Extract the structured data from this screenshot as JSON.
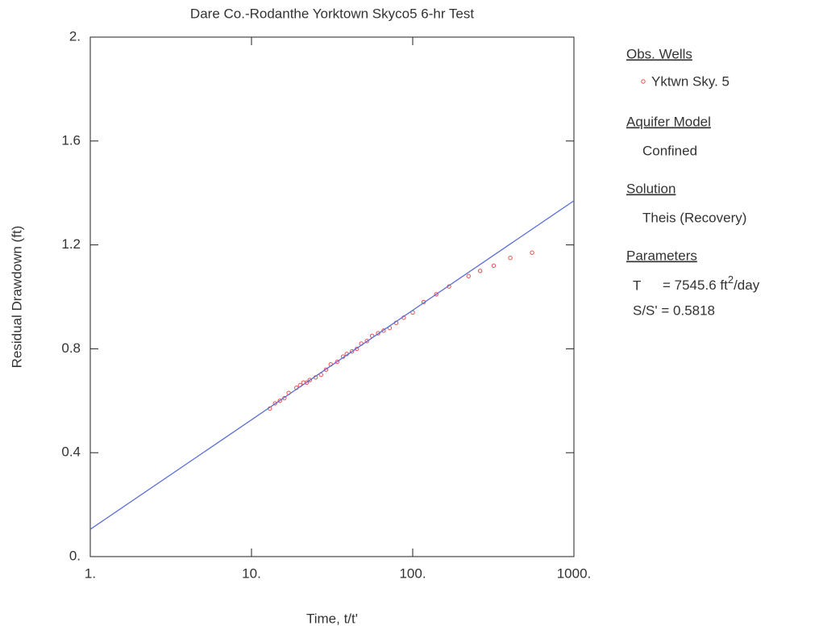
{
  "chart_data": {
    "type": "scatter",
    "title": "Dare Co.-Rodanthe Yorktown Skyco5  6-hr Test",
    "x_label": "Time, t/t'",
    "y_label": "Residual Drawdown (ft)",
    "xscale": "log",
    "xlim": [
      1,
      1000
    ],
    "ylim": [
      0,
      2
    ],
    "xticks": [
      {
        "value": 1,
        "label": "1."
      },
      {
        "value": 10,
        "label": "10."
      },
      {
        "value": 100,
        "label": "100."
      },
      {
        "value": 1000,
        "label": "1000."
      }
    ],
    "yticks": [
      {
        "value": 0,
        "label": "0."
      },
      0.4,
      0.8,
      1.2,
      1.6,
      {
        "value": 2,
        "label": "2."
      }
    ],
    "series": [
      {
        "name": "Yktwn Sky. 5",
        "color": "#e8504a",
        "x": [
          13,
          14,
          15,
          16,
          17,
          19,
          20,
          21,
          22,
          23,
          25,
          27,
          29,
          31,
          34,
          37,
          39,
          42,
          45,
          48,
          52,
          56,
          61,
          66,
          72,
          79,
          88,
          100,
          117,
          140,
          168,
          222,
          262,
          318,
          403,
          550
        ],
        "values": [
          0.57,
          0.59,
          0.6,
          0.61,
          0.63,
          0.65,
          0.66,
          0.67,
          0.67,
          0.68,
          0.69,
          0.7,
          0.72,
          0.74,
          0.75,
          0.77,
          0.78,
          0.79,
          0.8,
          0.82,
          0.83,
          0.85,
          0.86,
          0.87,
          0.88,
          0.9,
          0.92,
          0.94,
          0.98,
          1.01,
          1.04,
          1.08,
          1.1,
          1.12,
          1.15,
          1.17
        ]
      },
      {
        "color": "#5a6fd8",
        "mode": "line",
        "x": [
          1,
          1000
        ],
        "values": [
          0.105,
          1.37
        ]
      }
    ],
    "legend_panel": {
      "obs_header": "Obs. Wells",
      "model_header": "Aquifer Model",
      "model": "Confined",
      "solution_header": "Solution",
      "solution": "Theis (Recovery)",
      "parameters_header": "Parameters",
      "t_name": "T",
      "t_value": "= 7545.6 ft",
      "t_sup": "2",
      "t_unit": "/day",
      "s_param": "S/S' = 0.5818"
    }
  }
}
